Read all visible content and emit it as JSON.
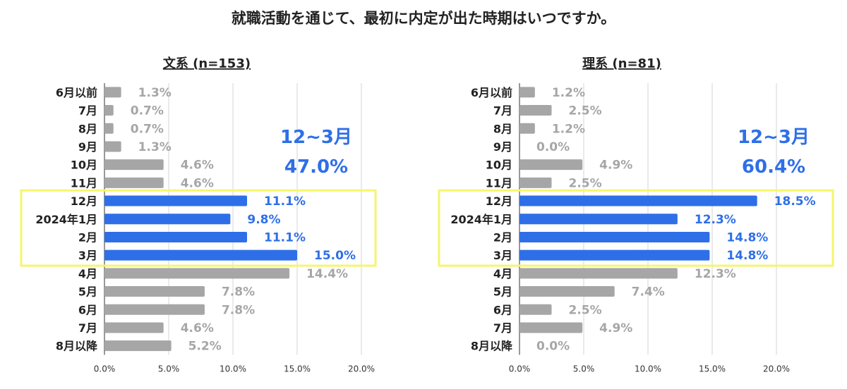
{
  "title": "就職活動を通じて、最初に内定が出た時期はいつですか。",
  "colors": {
    "highlight_bar": "#2E6FE8",
    "other_bar": "#A6A6A6",
    "highlight_text": "#2E6FE8",
    "other_text": "#A6A6A6",
    "grid": "#D4D4D4",
    "highlight_box": "#F5F56E"
  },
  "chart_data": [
    {
      "type": "bar",
      "orientation": "horizontal",
      "title": "文系 (n=153)",
      "categories": [
        "6月以前",
        "7月",
        "8月",
        "9月",
        "10月",
        "11月",
        "12月",
        "2024年1月",
        "2月",
        "3月",
        "4月",
        "5月",
        "6月",
        "7月",
        "8月以降"
      ],
      "values": [
        1.3,
        0.7,
        0.7,
        1.3,
        4.6,
        4.6,
        11.1,
        9.8,
        11.1,
        15.0,
        14.4,
        7.8,
        7.8,
        4.6,
        5.2
      ],
      "value_labels": [
        "1.3%",
        "0.7%",
        "0.7%",
        "1.3%",
        "4.6%",
        "4.6%",
        "11.1%",
        "9.8%",
        "11.1%",
        "15.0%",
        "14.4%",
        "7.8%",
        "7.8%",
        "4.6%",
        "5.2%"
      ],
      "highlighted": [
        "12月",
        "2024年1月",
        "2月",
        "3月"
      ],
      "xlim": [
        0,
        20
      ],
      "xticks": [
        "0.0%",
        "5.0%",
        "10.0%",
        "15.0%",
        "20.0%"
      ],
      "grid": true,
      "annotation": {
        "range": "12~3月",
        "total": "47.0%"
      }
    },
    {
      "type": "bar",
      "orientation": "horizontal",
      "title": "理系 (n=81)",
      "categories": [
        "6月以前",
        "7月",
        "8月",
        "9月",
        "10月",
        "11月",
        "12月",
        "2024年1月",
        "2月",
        "3月",
        "4月",
        "5月",
        "6月",
        "7月",
        "8月以降"
      ],
      "values": [
        1.2,
        2.5,
        1.2,
        0.0,
        4.9,
        2.5,
        18.5,
        12.3,
        14.8,
        14.8,
        12.3,
        7.4,
        2.5,
        4.9,
        0.0
      ],
      "value_labels": [
        "1.2%",
        "2.5%",
        "1.2%",
        "0.0%",
        "4.9%",
        "2.5%",
        "18.5%",
        "12.3%",
        "14.8%",
        "14.8%",
        "12.3%",
        "7.4%",
        "2.5%",
        "4.9%",
        "0.0%"
      ],
      "highlighted": [
        "12月",
        "2024年1月",
        "2月",
        "3月"
      ],
      "xlim": [
        0,
        20
      ],
      "xticks": [
        "0.0%",
        "5.0%",
        "10.0%",
        "15.0%",
        "20.0%"
      ],
      "grid": true,
      "annotation": {
        "range": "12~3月",
        "total": "60.4%"
      }
    }
  ]
}
